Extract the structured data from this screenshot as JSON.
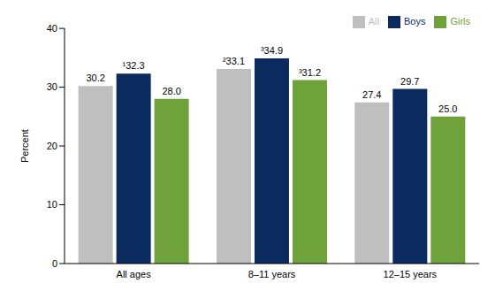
{
  "chart_data": {
    "type": "bar",
    "categories": [
      "All ages",
      "8–11 years",
      "12–15 years"
    ],
    "series": [
      {
        "name": "All",
        "color": "#bfbfbf",
        "values": [
          30.2,
          33.1,
          27.4
        ],
        "value_labels": [
          "30.2",
          "²33.1",
          "27.4"
        ]
      },
      {
        "name": "Boys",
        "color": "#0b2a5e",
        "values": [
          32.3,
          34.9,
          29.7
        ],
        "value_labels": [
          "¹32.3",
          "³34.9",
          "29.7"
        ]
      },
      {
        "name": "Girls",
        "color": "#6fa23a",
        "values": [
          28.0,
          31.2,
          25.0
        ],
        "value_labels": [
          "28.0",
          "³31.2",
          "25.0"
        ]
      }
    ],
    "y_label": "Percent",
    "ylim": [
      0,
      40
    ],
    "yticks": [
      0,
      10,
      20,
      30,
      40
    ],
    "grid": false,
    "legend": "upper right",
    "data_labels": true
  }
}
